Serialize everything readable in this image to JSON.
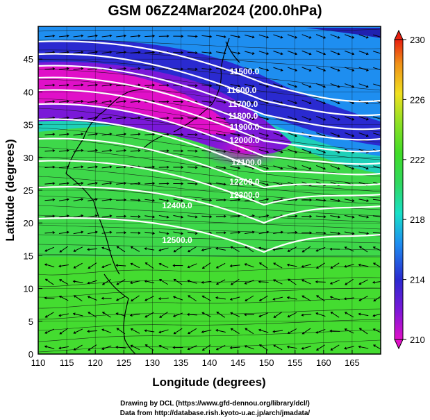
{
  "title": "GSM 06Z24Mar2024 (200.0hPa)",
  "xaxis": {
    "label": "Longitude (degrees)",
    "ticks": [
      "110",
      "115",
      "120",
      "125",
      "130",
      "135",
      "140",
      "145",
      "150",
      "155",
      "160",
      "165"
    ],
    "range": [
      110,
      170
    ]
  },
  "yaxis": {
    "label": "Latitude (degrees)",
    "ticks": [
      "0",
      "5",
      "10",
      "15",
      "20",
      "25",
      "30",
      "35",
      "40",
      "45"
    ],
    "range": [
      0,
      50
    ]
  },
  "colorbar": {
    "ticks": [
      "210",
      "214",
      "218",
      "222",
      "226",
      "230"
    ],
    "range": [
      210,
      230
    ],
    "colors": [
      "#e010c8",
      "#7a18d8",
      "#2a2ad0",
      "#1e8ef0",
      "#18e0c8",
      "#30d860",
      "#40dc28",
      "#8ce024",
      "#f0e020",
      "#f09018",
      "#e82010"
    ]
  },
  "contours": [
    {
      "label": "11500.0"
    },
    {
      "label": "11600.0"
    },
    {
      "label": "11700.0"
    },
    {
      "label": "11800.0"
    },
    {
      "label": "11900.0"
    },
    {
      "label": "12000.0"
    },
    {
      "label": "12100.0"
    },
    {
      "label": "12200.0"
    },
    {
      "label": "12300.0"
    },
    {
      "label": "12400.0"
    },
    {
      "label": "12500.0"
    }
  ],
  "credit_line1": "Drawing by DCL (https://www.gfd-dennou.org/library/dcl/)",
  "credit_line2": "Data from http://database.rish.kyoto-u.ac.jp/arch/jmadata/"
}
